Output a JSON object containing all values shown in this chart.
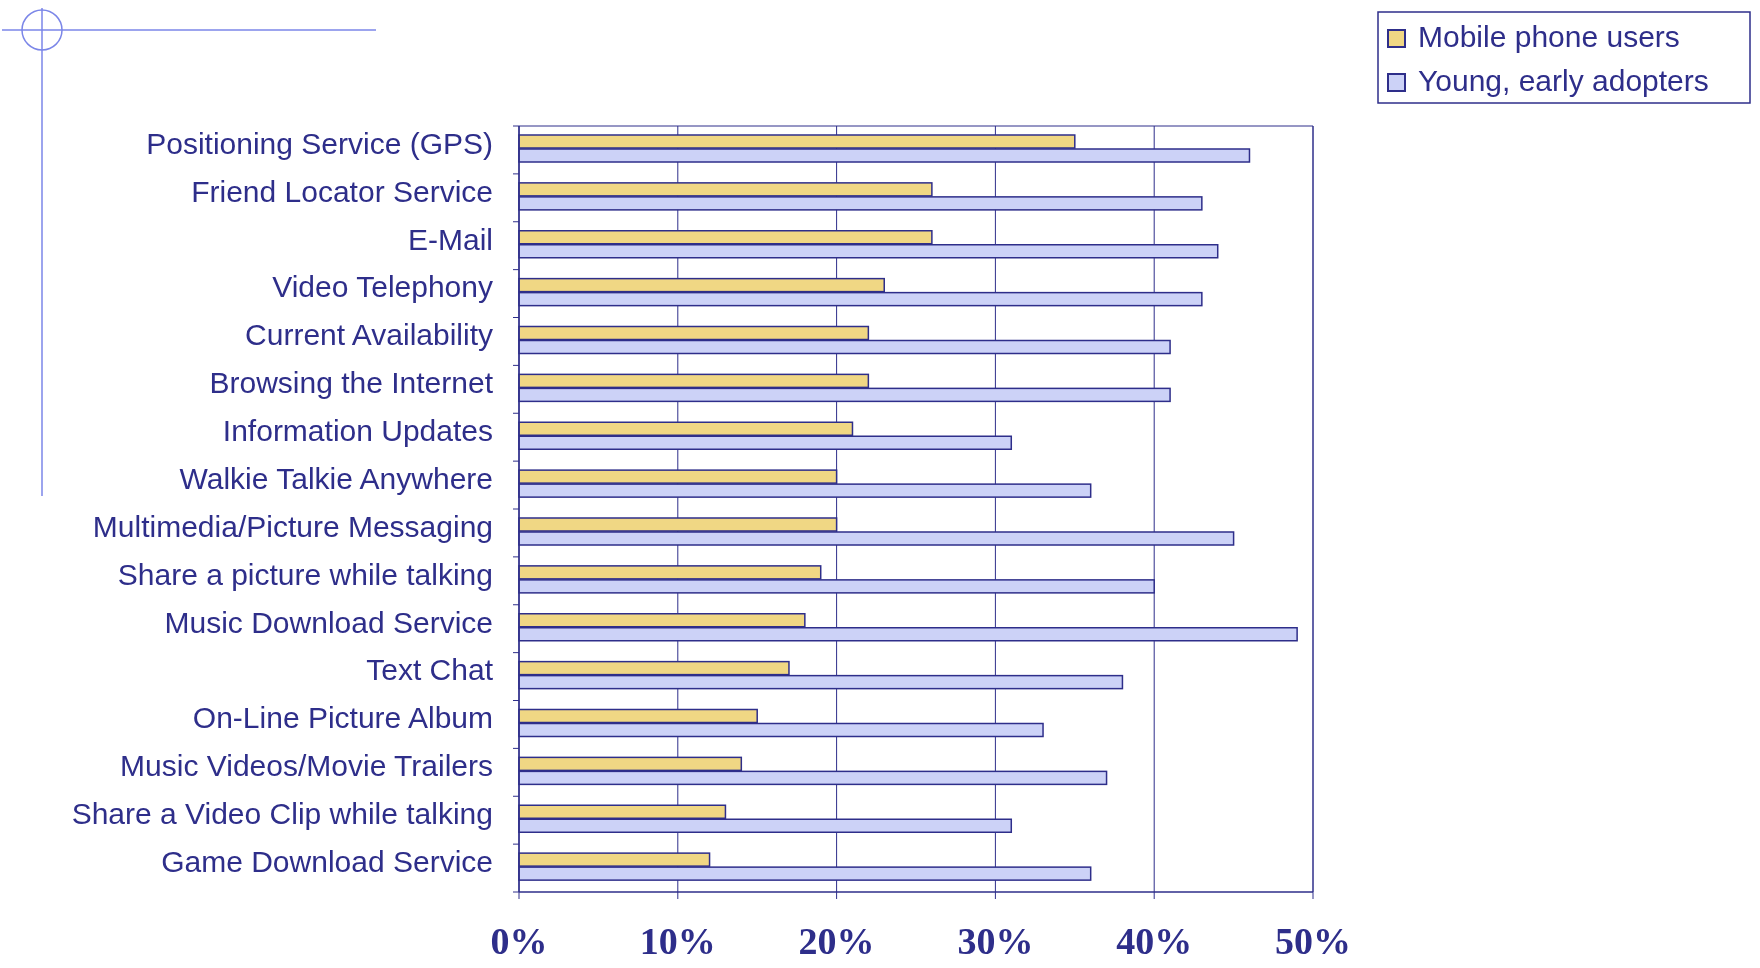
{
  "chart_data": {
    "type": "bar",
    "orientation": "horizontal",
    "categories": [
      "Positioning Service (GPS)",
      "Friend Locator Service",
      "E-Mail",
      "Video Telephony",
      "Current Availability",
      "Browsing the Internet",
      "Information Updates",
      "Walkie Talkie Anywhere",
      "Multimedia/Picture Messaging",
      "Share a picture while talking",
      "Music Download Service",
      "Text Chat",
      "On-Line Picture Album",
      "Music Videos/Movie Trailers",
      "Share a Video Clip while talking",
      "Game Download Service"
    ],
    "series": [
      {
        "name": "Mobile phone users",
        "color": "#f0d784",
        "values": [
          35,
          26,
          26,
          23,
          22,
          22,
          21,
          20,
          20,
          19,
          18,
          17,
          15,
          14,
          13,
          12
        ]
      },
      {
        "name": "Young, early adopters",
        "color": "#ccd2f7",
        "values": [
          46,
          43,
          44,
          43,
          41,
          41,
          31,
          36,
          45,
          40,
          49,
          38,
          33,
          37,
          31,
          36
        ]
      }
    ],
    "xlim": [
      0,
      50
    ],
    "xticks": [
      {
        "value": 0,
        "label": "0%"
      },
      {
        "value": 10,
        "label": "10%"
      },
      {
        "value": 20,
        "label": "20%"
      },
      {
        "value": 30,
        "label": "30%"
      },
      {
        "value": 40,
        "label": "40%"
      },
      {
        "value": 50,
        "label": "50%"
      }
    ],
    "grid": "x",
    "legend": "top right"
  }
}
